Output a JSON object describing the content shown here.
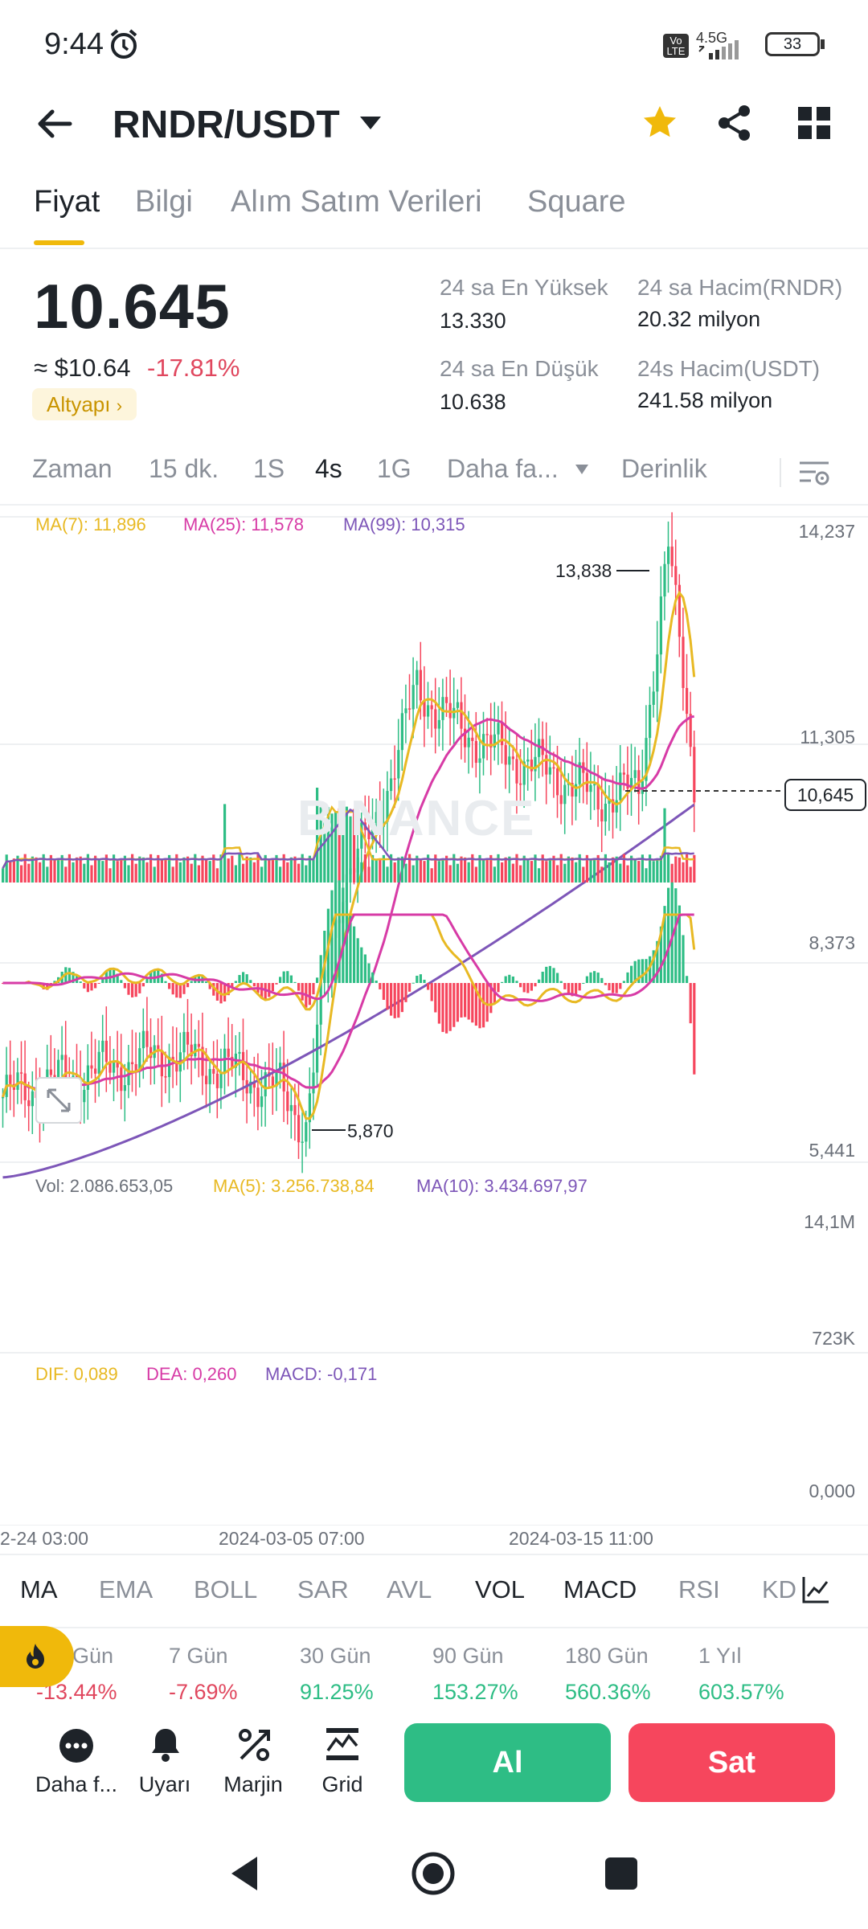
{
  "status": {
    "time": "9:44",
    "network": "4.5G",
    "volte": "Vo LTE",
    "battery": "33"
  },
  "header": {
    "pair": "RNDR/USDT"
  },
  "tabs": [
    "Fiyat",
    "Bilgi",
    "Alım Satım Verileri",
    "Square"
  ],
  "ticker": {
    "last": "10.645",
    "usd": "≈ $10.64",
    "change": "-17.81%",
    "tag": "Altyapı",
    "high_label": "24 sa En Yüksek",
    "high": "13.330",
    "low_label": "24 sa En Düşük",
    "low": "10.638",
    "vol_base_label": "24 sa Hacim(RNDR)",
    "vol_base": "20.32 milyon",
    "vol_quote_label": "24s Hacim(USDT)",
    "vol_quote": "241.58 milyon"
  },
  "intervals": [
    "Zaman",
    "15 dk.",
    "1S",
    "4s",
    "1G",
    "Daha fa...",
    "Derinlik"
  ],
  "chart": {
    "ma7": "MA(7): 11,896",
    "ma25": "MA(25): 11,578",
    "ma99": "MA(99): 10,315",
    "y_ticks": [
      "14,237",
      "11,305",
      "8,373",
      "5,441"
    ],
    "current": "10,645",
    "high_mark": "13,838",
    "low_mark": "5,870",
    "watermark": "BINANCE",
    "vol": "Vol: 2.086.653,05",
    "vol_ma5": "MA(5): 3.256.738,84",
    "vol_ma10": "MA(10): 3.434.697,97",
    "vol_ticks": [
      "14,1M",
      "723K"
    ],
    "dif": "DIF: 0,089",
    "dea": "DEA: 0,260",
    "macd": "MACD: -0,171",
    "macd_tick": "0,000",
    "dates": [
      "2-24 03:00",
      "2024-03-05 07:00",
      "2024-03-15 11:00"
    ],
    "colors": {
      "up": "#2ebd85",
      "down": "#f6465d",
      "ma7": "#e8b923",
      "ma25": "#d73ba6",
      "ma99": "#7d56b8"
    }
  },
  "chart_data": {
    "type": "candlestick",
    "y_range": [
      5.441,
      14.237
    ],
    "last": 10.645,
    "high": 13.838,
    "low": 5.87,
    "ma7": 11.896,
    "ma25": 11.578,
    "ma99": 10.315,
    "dif": 0.089,
    "dea": 0.26,
    "macd": -0.171
  },
  "indicators": [
    "MA",
    "EMA",
    "BOLL",
    "SAR",
    "AVL",
    "VOL",
    "MACD",
    "RSI",
    "KD"
  ],
  "performance": [
    {
      "label": "Gün",
      "value": "-13.44%"
    },
    {
      "label": "7 Gün",
      "value": "-7.69%"
    },
    {
      "label": "30 Gün",
      "value": "91.25%"
    },
    {
      "label": "90 Gün",
      "value": "153.27%"
    },
    {
      "label": "180 Gün",
      "value": "560.36%"
    },
    {
      "label": "1 Yıl",
      "value": "603.57%"
    }
  ],
  "actions": {
    "more": "Daha f...",
    "alert": "Uyarı",
    "margin": "Marjin",
    "grid": "Grid",
    "buy": "Al",
    "sell": "Sat"
  }
}
